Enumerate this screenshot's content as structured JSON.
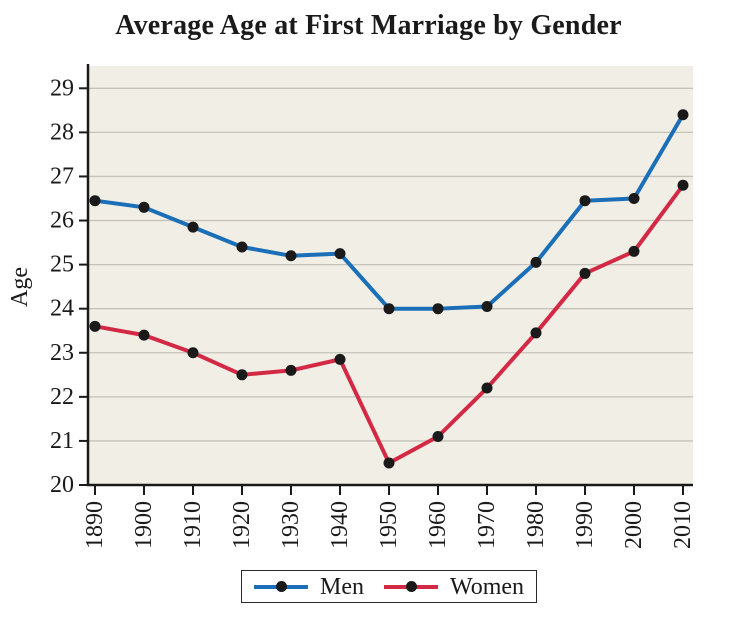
{
  "chart_data": {
    "type": "line",
    "title": "Average Age at First Marriage by Gender",
    "xlabel": "",
    "ylabel": "Age",
    "x": [
      1890,
      1900,
      1910,
      1920,
      1930,
      1940,
      1950,
      1960,
      1970,
      1980,
      1990,
      2000,
      2010
    ],
    "series": [
      {
        "name": "Men",
        "color": "#1b6fb8",
        "values": [
          26.45,
          26.3,
          25.85,
          25.4,
          25.2,
          25.25,
          24.0,
          24.0,
          24.05,
          25.05,
          26.45,
          26.5,
          28.4
        ]
      },
      {
        "name": "Women",
        "color": "#d42945",
        "values": [
          23.6,
          23.4,
          23.0,
          22.5,
          22.6,
          22.85,
          20.5,
          21.1,
          22.2,
          23.45,
          24.8,
          25.3,
          26.8
        ]
      }
    ],
    "yticks": [
      20,
      21,
      22,
      23,
      24,
      25,
      26,
      27,
      28,
      29
    ],
    "ylim": [
      20,
      29.4
    ],
    "grid": "horizontal",
    "legend_position": "bottom",
    "marker": "circle",
    "marker_color": "#1a1a1a"
  },
  "colors": {
    "page_bg": "#ffffff",
    "plot_bg": "#f1eee5",
    "gridline": "#c5c2bb",
    "axis": "#1a1a1a",
    "text": "#1a1a1a",
    "legend_border": "#2a2a2a"
  }
}
